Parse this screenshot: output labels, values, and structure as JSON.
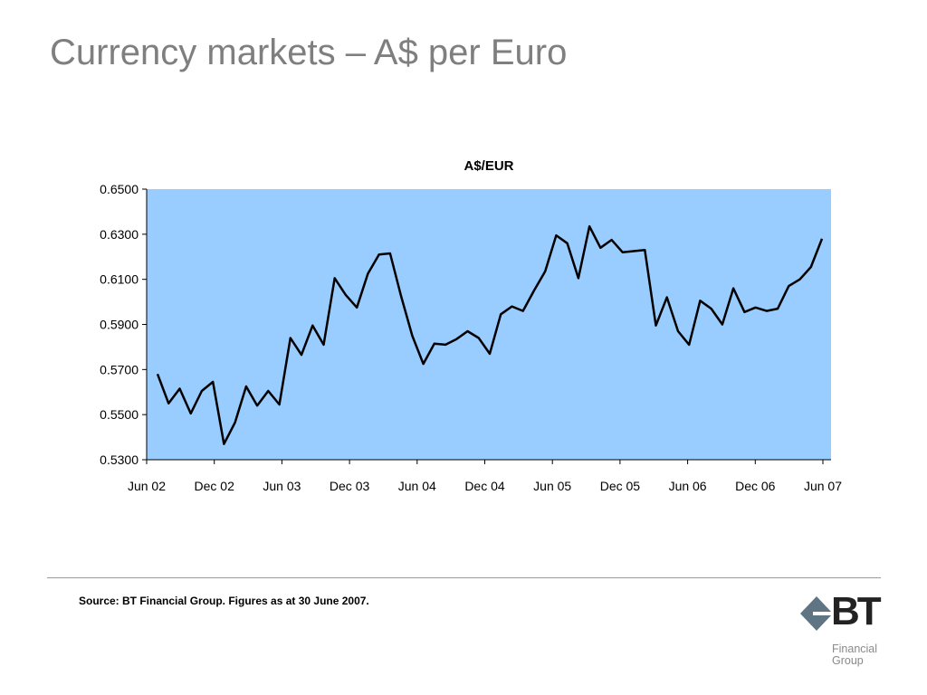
{
  "slide": {
    "title": "Currency markets – A$ per Euro",
    "source": "Source: BT Financial Group. Figures as at 30 June 2007."
  },
  "logo": {
    "wordmark": "BT",
    "line1": "Financial",
    "line2": "Group"
  },
  "chart_data": {
    "type": "line",
    "title": "A$/EUR",
    "xlabel": "",
    "ylabel": "",
    "ylim": [
      0.53,
      0.65
    ],
    "yticks": [
      "0.6500",
      "0.6300",
      "0.6100",
      "0.5900",
      "0.5700",
      "0.5500",
      "0.5300"
    ],
    "xticks": [
      "Jun 02",
      "Dec 02",
      "Jun 03",
      "Dec 03",
      "Jun 04",
      "Dec 04",
      "Jun 05",
      "Dec 05",
      "Jun 06",
      "Dec 06",
      "Jun 07"
    ],
    "grid": false,
    "legend": "none",
    "plot_background": "#99ccff",
    "line_color": "#000000",
    "series": [
      {
        "values": [
          0.568,
          0.555,
          0.5615,
          0.5505,
          0.5605,
          0.5645,
          0.537,
          0.5465,
          0.5625,
          0.554,
          0.5605,
          0.5545,
          0.584,
          0.5765,
          0.5895,
          0.581,
          0.6105,
          0.603,
          0.5975,
          0.6125,
          0.621,
          0.6215,
          0.6025,
          0.585,
          0.5725,
          0.5815,
          0.581,
          0.5835,
          0.587,
          0.584,
          0.577,
          0.5945,
          0.598,
          0.596,
          0.605,
          0.6135,
          0.6295,
          0.626,
          0.6105,
          0.6335,
          0.624,
          0.6275,
          0.622,
          0.6225,
          0.623,
          0.5895,
          0.602,
          0.587,
          0.581,
          0.6005,
          0.597,
          0.59,
          0.606,
          0.5955,
          0.5975,
          0.596,
          0.597,
          0.607,
          0.61,
          0.6155,
          0.628
        ]
      }
    ]
  }
}
